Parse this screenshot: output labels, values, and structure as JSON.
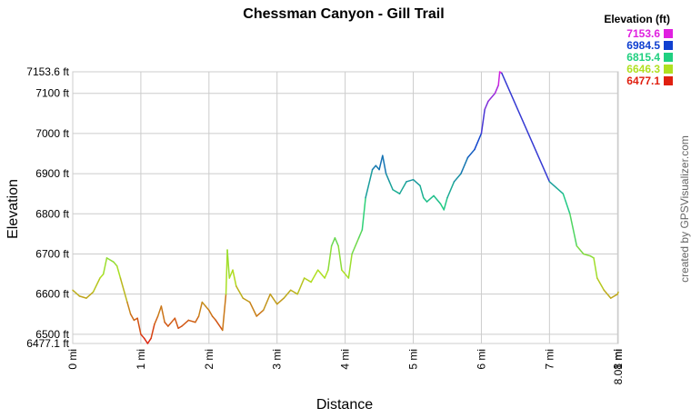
{
  "chart_data": {
    "type": "line",
    "title": "Chessman Canyon - Gill Trail",
    "x_label": "Distance",
    "y_label": "Elevation",
    "credit": "created by GPSVisualizer.com",
    "x": [
      0,
      0.1,
      0.2,
      0.3,
      0.4,
      0.45,
      0.5,
      0.6,
      0.65,
      0.7,
      0.8,
      0.85,
      0.9,
      0.95,
      1.0,
      1.05,
      1.1,
      1.15,
      1.2,
      1.25,
      1.3,
      1.35,
      1.4,
      1.5,
      1.55,
      1.6,
      1.7,
      1.8,
      1.85,
      1.9,
      1.95,
      2.0,
      2.05,
      2.1,
      2.2,
      2.25,
      2.27,
      2.3,
      2.35,
      2.4,
      2.5,
      2.6,
      2.7,
      2.8,
      2.9,
      3.0,
      3.1,
      3.2,
      3.3,
      3.4,
      3.5,
      3.6,
      3.7,
      3.75,
      3.8,
      3.85,
      3.9,
      3.95,
      4.05,
      4.1,
      4.2,
      4.25,
      4.3,
      4.4,
      4.45,
      4.5,
      4.55,
      4.6,
      4.65,
      4.7,
      4.8,
      4.9,
      5.0,
      5.1,
      5.15,
      5.2,
      5.3,
      5.4,
      5.45,
      5.5,
      5.6,
      5.7,
      5.8,
      5.9,
      6.0,
      6.05,
      6.1,
      6.2,
      6.25,
      6.27,
      6.3,
      7.0,
      7.1,
      7.2,
      7.3,
      7.4,
      7.5,
      7.6,
      7.65,
      7.7,
      7.8,
      7.9,
      8.0,
      8.01
    ],
    "series": [
      {
        "values": [
          6610,
          6595,
          6590,
          6605,
          6640,
          6650,
          6690,
          6680,
          6670,
          6640,
          6580,
          6550,
          6535,
          6540,
          6500,
          6490,
          6477.1,
          6490,
          6525,
          6545,
          6570,
          6530,
          6520,
          6540,
          6515,
          6520,
          6535,
          6530,
          6545,
          6580,
          6570,
          6560,
          6545,
          6535,
          6510,
          6600,
          6710,
          6640,
          6660,
          6620,
          6590,
          6580,
          6545,
          6560,
          6600,
          6575,
          6590,
          6610,
          6600,
          6640,
          6630,
          6660,
          6640,
          6660,
          6720,
          6740,
          6720,
          6660,
          6640,
          6700,
          6740,
          6760,
          6840,
          6910,
          6920,
          6910,
          6945,
          6900,
          6880,
          6860,
          6850,
          6880,
          6885,
          6870,
          6840,
          6830,
          6845,
          6825,
          6810,
          6840,
          6880,
          6900,
          6940,
          6960,
          7000,
          7060,
          7080,
          7100,
          7120,
          7153.6,
          7150,
          6880,
          6865,
          6850,
          6800,
          6720,
          6700,
          6695,
          6690,
          6640,
          6610,
          6590,
          6600,
          6605
        ]
      }
    ],
    "xlim": [
      0,
      8.01
    ],
    "xticks": [
      {
        "value": 0,
        "label": "0 mi"
      },
      {
        "value": 1,
        "label": "1 mi"
      },
      {
        "value": 2,
        "label": "2 mi"
      },
      {
        "value": 3,
        "label": "3 mi"
      },
      {
        "value": 4,
        "label": "4 mi"
      },
      {
        "value": 5,
        "label": "5 mi"
      },
      {
        "value": 6,
        "label": "6 mi"
      },
      {
        "value": 7,
        "label": "7 mi"
      },
      {
        "value": 8,
        "label": "8 mi"
      },
      {
        "value": 8.01,
        "label": "8.01 mi"
      }
    ],
    "ylim": [
      6477.1,
      7153.6
    ],
    "yticks": [
      {
        "value": 6477.1,
        "label": "6477.1 ft"
      },
      {
        "value": 6500,
        "label": "6500 ft"
      },
      {
        "value": 6600,
        "label": "6600 ft"
      },
      {
        "value": 6700,
        "label": "6700 ft"
      },
      {
        "value": 6800,
        "label": "6800 ft"
      },
      {
        "value": 6900,
        "label": "6900 ft"
      },
      {
        "value": 7000,
        "label": "7000 ft"
      },
      {
        "value": 7100,
        "label": "7100 ft"
      },
      {
        "value": 7153.6,
        "label": "7153.6 ft"
      }
    ],
    "grid": true,
    "legend": {
      "title": "Elevation (ft)",
      "stops": [
        7153.6,
        6984.5,
        6815.4,
        6646.3,
        6477.1
      ],
      "colors": [
        "#e020e0",
        "#1040d0",
        "#20d080",
        "#b0e020",
        "#e02010"
      ]
    }
  }
}
